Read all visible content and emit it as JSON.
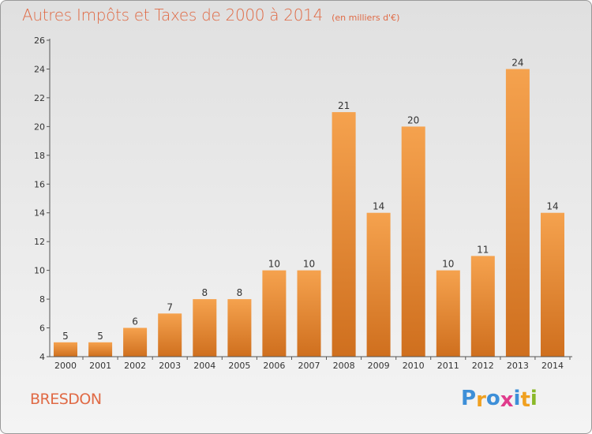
{
  "header": {
    "title": "Autres Impôts et Taxes de 2000 à 2014",
    "subtitle": "(en milliers d'€)"
  },
  "footer": {
    "commune": "BRESDON",
    "logo_letters": [
      "P",
      "r",
      "o",
      "x",
      "i",
      "t",
      "i"
    ],
    "logo_colors": [
      "#3d8fd8",
      "#f0a020",
      "#3d8fd8",
      "#e03c8c",
      "#3d8fd8",
      "#f0a020",
      "#8ab828"
    ]
  },
  "chart_data": {
    "type": "bar",
    "title": "Autres Impôts et Taxes de 2000 à 2014",
    "subtitle": "(en milliers d'€)",
    "categories": [
      "2000",
      "2001",
      "2002",
      "2003",
      "2004",
      "2005",
      "2006",
      "2007",
      "2008",
      "2009",
      "2010",
      "2011",
      "2012",
      "2013",
      "2014"
    ],
    "values": [
      5,
      5,
      6,
      7,
      8,
      8,
      10,
      10,
      21,
      14,
      20,
      10,
      11,
      24,
      14
    ],
    "ylim": [
      4,
      26
    ],
    "yticks": [
      4,
      6,
      8,
      10,
      12,
      14,
      16,
      18,
      20,
      22,
      24,
      26
    ],
    "xlabel": "",
    "ylabel": "",
    "grid": false,
    "bar_color_top": "#f5a24e",
    "bar_color_bottom": "#cf6f1e",
    "value_labels": true
  }
}
